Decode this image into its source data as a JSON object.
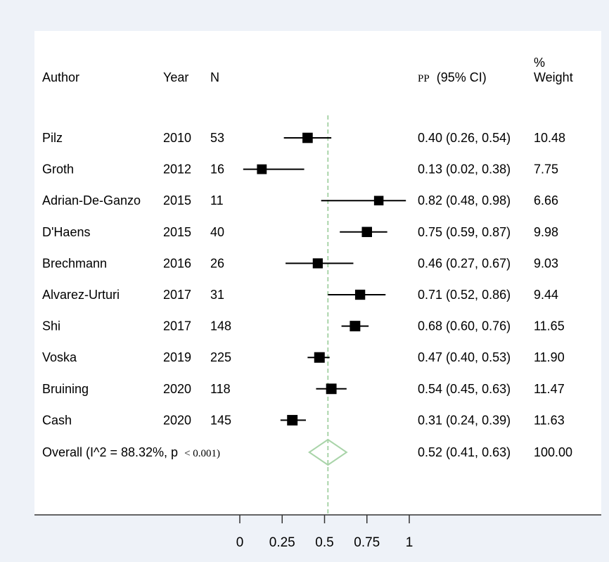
{
  "chart_data": {
    "type": "forest",
    "columns": {
      "author": "Author",
      "year": "Year",
      "n": "N",
      "estimate_prefix": "PP",
      "estimate_suffix": "(95% CI)",
      "weight_line1": "%",
      "weight_line2": "Weight"
    },
    "studies": [
      {
        "author": "Pilz",
        "year": "2010",
        "n": "53",
        "pp": 0.4,
        "lo": 0.26,
        "hi": 0.54,
        "ci_text": "0.40 (0.26, 0.54)",
        "weight": "10.48"
      },
      {
        "author": "Groth",
        "year": "2012",
        "n": "16",
        "pp": 0.13,
        "lo": 0.02,
        "hi": 0.38,
        "ci_text": "0.13 (0.02, 0.38)",
        "weight": "7.75"
      },
      {
        "author": "Adrian-De-Ganzo",
        "year": "2015",
        "n": "11",
        "pp": 0.82,
        "lo": 0.48,
        "hi": 0.98,
        "ci_text": "0.82 (0.48, 0.98)",
        "weight": "6.66"
      },
      {
        "author": "D'Haens",
        "year": "2015",
        "n": "40",
        "pp": 0.75,
        "lo": 0.59,
        "hi": 0.87,
        "ci_text": "0.75 (0.59, 0.87)",
        "weight": "9.98"
      },
      {
        "author": "Brechmann",
        "year": "2016",
        "n": "26",
        "pp": 0.46,
        "lo": 0.27,
        "hi": 0.67,
        "ci_text": "0.46 (0.27, 0.67)",
        "weight": "9.03"
      },
      {
        "author": "Alvarez-Urturi",
        "year": "2017",
        "n": "31",
        "pp": 0.71,
        "lo": 0.52,
        "hi": 0.86,
        "ci_text": "0.71 (0.52, 0.86)",
        "weight": "9.44"
      },
      {
        "author": "Shi",
        "year": "2017",
        "n": "148",
        "pp": 0.68,
        "lo": 0.6,
        "hi": 0.76,
        "ci_text": "0.68 (0.60, 0.76)",
        "weight": "11.65"
      },
      {
        "author": "Voska",
        "year": "2019",
        "n": "225",
        "pp": 0.47,
        "lo": 0.4,
        "hi": 0.53,
        "ci_text": "0.47 (0.40, 0.53)",
        "weight": "11.90"
      },
      {
        "author": "Bruining",
        "year": "2020",
        "n": "118",
        "pp": 0.54,
        "lo": 0.45,
        "hi": 0.63,
        "ci_text": "0.54 (0.45, 0.63)",
        "weight": "11.47"
      },
      {
        "author": "Cash",
        "year": "2020",
        "n": "145",
        "pp": 0.31,
        "lo": 0.24,
        "hi": 0.39,
        "ci_text": "0.31 (0.24, 0.39)",
        "weight": "11.63"
      }
    ],
    "overall": {
      "label_main": "Overall  (I^2 = 88.32%, p",
      "label_p": "< 0.001)",
      "pp": 0.52,
      "lo": 0.41,
      "hi": 0.63,
      "ci_text": "0.52 (0.41, 0.63)",
      "weight": "100.00"
    },
    "x_ticks": [
      0,
      0.25,
      0.5,
      0.75,
      1
    ],
    "x_tick_labels": [
      "0",
      "0.25",
      "0.5",
      "0.75",
      "1"
    ],
    "xlim": [
      0,
      1
    ],
    "reference_line": 0.52,
    "colors": {
      "background": "#eef2f8",
      "panel": "#ffffff",
      "marker": "#000000",
      "reference_line": "#a9d4a9",
      "diamond": "#a9d4a9"
    }
  }
}
